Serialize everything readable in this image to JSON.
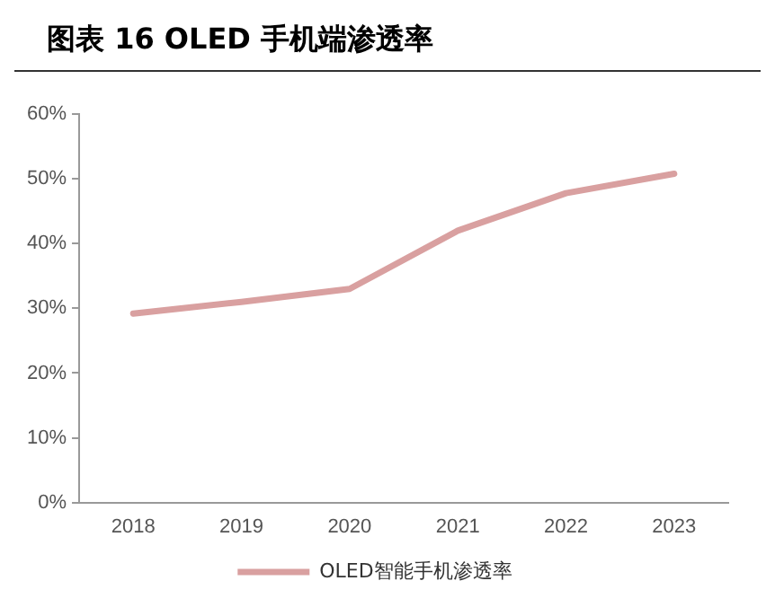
{
  "chart_data": {
    "type": "line",
    "title": "图表 16 OLED 手机端渗透率",
    "categories": [
      "2018",
      "2019",
      "2020",
      "2021",
      "2022",
      "2023"
    ],
    "series": [
      {
        "name": "OLED智能手机渗透率",
        "color": "#d9a0a0",
        "values": [
          29.2,
          31,
          33,
          42,
          47.8,
          50.8
        ]
      }
    ],
    "ylim": [
      0,
      60
    ],
    "yticks": [
      {
        "value": 0,
        "label": "0%"
      },
      {
        "value": 10,
        "label": "10%"
      },
      {
        "value": 20,
        "label": "20%"
      },
      {
        "value": 30,
        "label": "30%"
      },
      {
        "value": 40,
        "label": "40%"
      },
      {
        "value": 50,
        "label": "50%"
      },
      {
        "value": 60,
        "label": "60%"
      }
    ],
    "grid": false,
    "legend": "bottom",
    "marker": "none",
    "line_style": "solid"
  }
}
